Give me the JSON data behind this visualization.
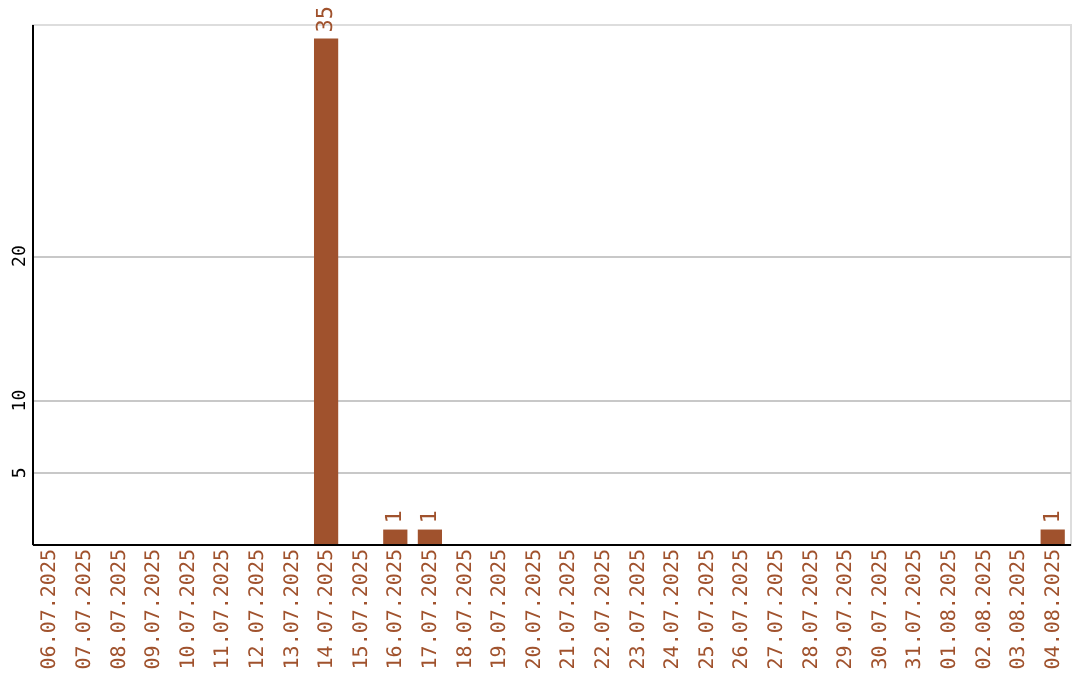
{
  "chart_data": {
    "type": "bar",
    "categories": [
      "06.07.2025",
      "07.07.2025",
      "08.07.2025",
      "09.07.2025",
      "10.07.2025",
      "11.07.2025",
      "12.07.2025",
      "13.07.2025",
      "14.07.2025",
      "15.07.2025",
      "16.07.2025",
      "17.07.2025",
      "18.07.2025",
      "19.07.2025",
      "20.07.2025",
      "21.07.2025",
      "22.07.2025",
      "23.07.2025",
      "24.07.2025",
      "25.07.2025",
      "26.07.2025",
      "27.07.2025",
      "28.07.2025",
      "29.07.2025",
      "30.07.2025",
      "31.07.2025",
      "01.08.2025",
      "02.08.2025",
      "03.08.2025",
      "04.08.2025"
    ],
    "values": [
      0,
      0,
      0,
      0,
      0,
      0,
      0,
      0,
      35,
      0,
      1,
      1,
      0,
      0,
      0,
      0,
      0,
      0,
      0,
      0,
      0,
      0,
      0,
      0,
      0,
      0,
      0,
      0,
      0,
      1
    ],
    "value_labels": [
      null,
      null,
      null,
      null,
      null,
      null,
      null,
      null,
      "35",
      null,
      "1",
      "1",
      null,
      null,
      null,
      null,
      null,
      null,
      null,
      null,
      null,
      null,
      null,
      null,
      null,
      null,
      null,
      null,
      null,
      "1"
    ],
    "color": "#a0522d",
    "ylim": [
      0,
      36
    ],
    "yticks": [
      5,
      10,
      20
    ],
    "grid": "y"
  }
}
